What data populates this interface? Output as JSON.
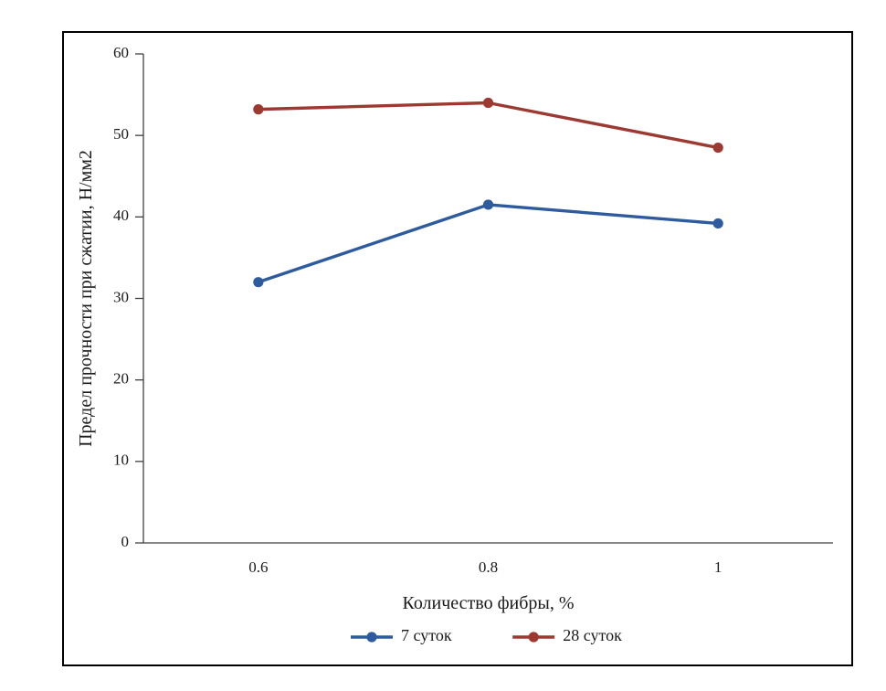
{
  "chart_data": {
    "type": "line",
    "x": [
      0.6,
      0.8,
      1
    ],
    "x_tick_labels": [
      "0.6",
      "0.8",
      "1"
    ],
    "series": [
      {
        "name": "7 суток",
        "values": [
          32,
          41.5,
          39.2
        ],
        "color": "#2e5b9e"
      },
      {
        "name": "28 суток",
        "values": [
          53.2,
          54,
          48.5
        ],
        "color": "#9c3a32"
      }
    ],
    "title": "",
    "xlabel": "Количество фибры, %",
    "ylabel": "Предел прочности при сжатии, Н/мм2",
    "ylim": [
      0,
      60
    ],
    "ytick_step": 10,
    "grid": false,
    "legend_position": "bottom",
    "colors": {
      "axis": "#404040",
      "text": "#1a1a1a",
      "frame_border": "#000000",
      "background": "#ffffff"
    }
  }
}
